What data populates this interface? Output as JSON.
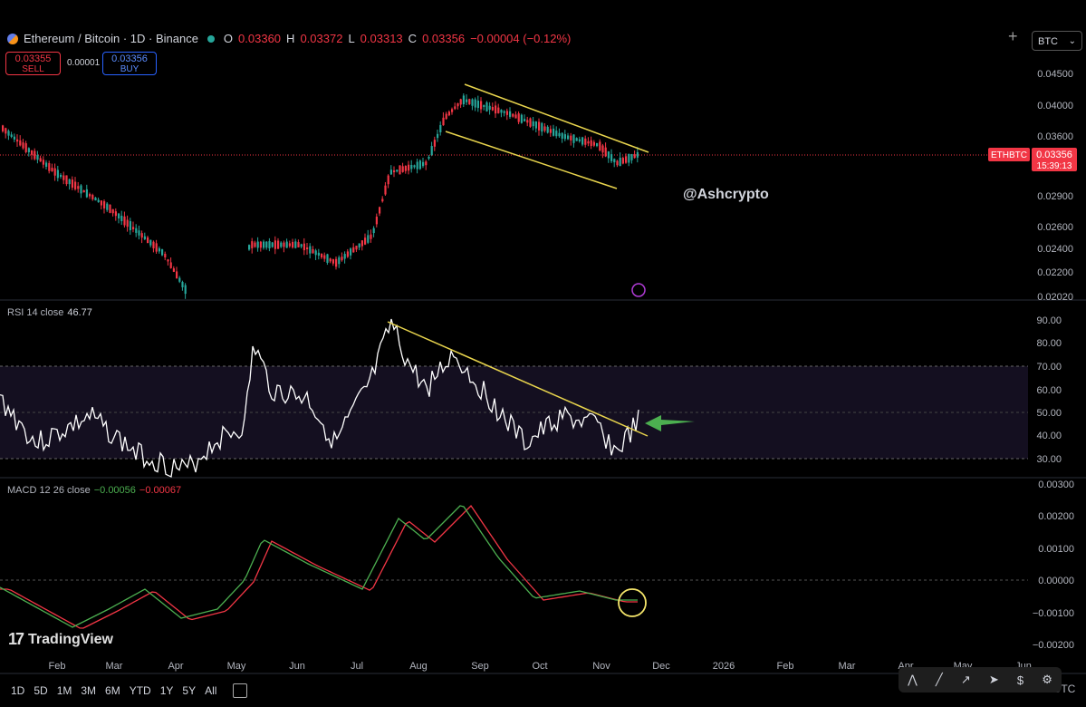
{
  "header": {
    "title": "Ethereum / Bitcoin · 1D · Binance",
    "o_label": "O",
    "o": "0.03360",
    "h_label": "H",
    "h": "0.03372",
    "l_label": "L",
    "l": "0.03313",
    "c_label": "C",
    "c": "0.03356",
    "change": "−0.00004 (−0.12%)"
  },
  "orders": {
    "sell_price": "0.03355",
    "sell_label": "SELL",
    "spread": "0.00001",
    "buy_price": "0.03356",
    "buy_label": "BUY"
  },
  "currency_select": "BTC",
  "price_axis": [
    "0.04500",
    "0.04000",
    "0.03600",
    "0.02900",
    "0.02600",
    "0.02400",
    "0.02200",
    "0.02020"
  ],
  "price_axis_inserted": "0.03356",
  "symbol_tag": "ETHBTC",
  "countdown": "15:39:13",
  "watermark": "@Ashcrypto",
  "rsi": {
    "label": "RSI 14 close",
    "value": "46.77",
    "axis": [
      "90.00",
      "80.00",
      "70.00",
      "60.00",
      "50.00",
      "40.00",
      "30.00"
    ]
  },
  "macd": {
    "label": "MACD 12 26 close",
    "macd_value": "−0.00056",
    "signal_value": "−0.00067",
    "axis": [
      "0.00300",
      "0.00200",
      "0.00100",
      "0.00000",
      "−0.00100",
      "−0.00200"
    ]
  },
  "time_axis": [
    "Feb",
    "Mar",
    "Apr",
    "May",
    "Jun",
    "Jul",
    "Aug",
    "Sep",
    "Oct",
    "Nov",
    "Dec",
    "2026",
    "Feb",
    "Mar",
    "Apr",
    "May",
    "Jun"
  ],
  "timezone": "UTC",
  "brand": "TradingView",
  "timeframes": [
    "1D",
    "5D",
    "1M",
    "3M",
    "6M",
    "YTD",
    "1Y",
    "5Y",
    "All"
  ],
  "colors": {
    "up": "#26a69a",
    "down": "#f23645",
    "trendline": "#e8d44d",
    "rsi_line": "#ffffff",
    "macd_line": "#4caf50",
    "signal_line": "#f23645",
    "arrow": "#4caf50"
  }
}
